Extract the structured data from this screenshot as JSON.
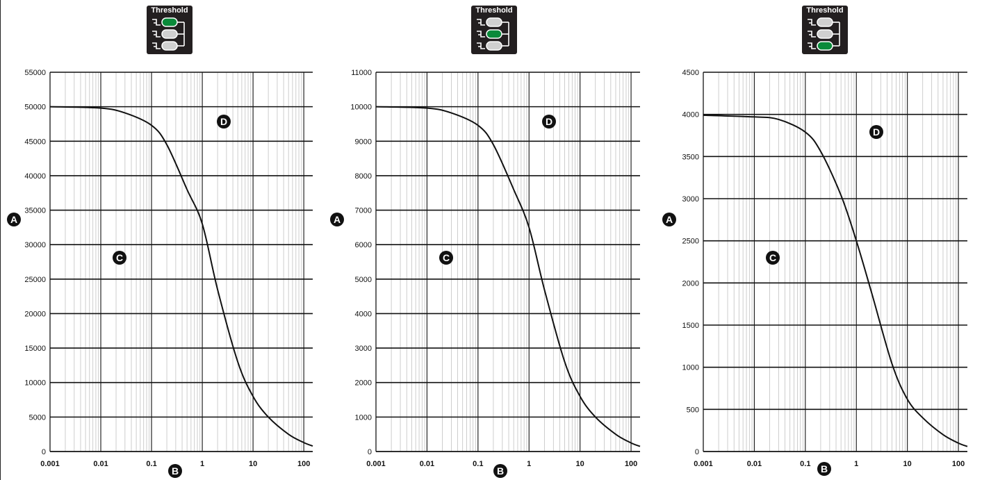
{
  "threshold_badges": [
    {
      "title": "Threshold",
      "active_level": 1
    },
    {
      "title": "Threshold",
      "active_level": 2
    },
    {
      "title": "Threshold",
      "active_level": 3
    }
  ],
  "callouts": {
    "y_axis": "A",
    "x_axis": "B",
    "below_curve": "C",
    "above_curve": "D"
  },
  "colors": {
    "active_level": "#0a8a3a",
    "inactive_level": "#d0d0d0",
    "curve": "#111111"
  },
  "chart_data": [
    {
      "type": "line",
      "x_scale": "log",
      "xlim": [
        0.001,
        150
      ],
      "x_tick_labels": [
        "0.001",
        "0.01",
        "0.1",
        "1",
        "10",
        "100"
      ],
      "ylim": [
        0,
        55000
      ],
      "y_ticks": [
        0,
        5000,
        10000,
        15000,
        20000,
        25000,
        30000,
        35000,
        40000,
        45000,
        50000,
        55000
      ],
      "y_tick_labels": [
        "0",
        "5000",
        "10000",
        "15000",
        "20000",
        "25000",
        "30000",
        "35000",
        "40000",
        "45000",
        "50000",
        "55000"
      ],
      "grid": true,
      "x": [
        0.001,
        0.01,
        0.03,
        0.1,
        0.2,
        0.5,
        1,
        2,
        5,
        10,
        20,
        50,
        100,
        150
      ],
      "y": [
        50000,
        49800,
        49100,
        47300,
        44500,
        38000,
        33000,
        23500,
        13000,
        8000,
        5000,
        2500,
        1300,
        800
      ]
    },
    {
      "type": "line",
      "x_scale": "log",
      "xlim": [
        0.001,
        150
      ],
      "x_tick_labels": [
        "0.001",
        "0.01",
        "0.1",
        "1",
        "10",
        "100"
      ],
      "ylim": [
        0,
        11000
      ],
      "y_ticks": [
        0,
        1000,
        2000,
        3000,
        4000,
        5000,
        6000,
        7000,
        8000,
        9000,
        10000,
        11000
      ],
      "y_tick_labels": [
        "0",
        "1000",
        "2000",
        "3000",
        "4000",
        "5000",
        "6000",
        "7000",
        "8000",
        "9000",
        "10000",
        "11000"
      ],
      "grid": true,
      "x": [
        0.001,
        0.01,
        0.03,
        0.1,
        0.2,
        0.5,
        1,
        2,
        5,
        10,
        20,
        50,
        100,
        150
      ],
      "y": [
        10000,
        9960,
        9820,
        9460,
        8900,
        7600,
        6500,
        4700,
        2600,
        1600,
        1000,
        500,
        250,
        150
      ]
    },
    {
      "type": "line",
      "x_scale": "log",
      "xlim": [
        0.001,
        150
      ],
      "x_tick_labels": [
        "0.001",
        "0.01",
        "0.1",
        "1",
        "10",
        "100"
      ],
      "ylim": [
        0,
        4500
      ],
      "y_ticks": [
        0,
        500,
        1000,
        1500,
        2000,
        2500,
        3000,
        3500,
        4000,
        4500
      ],
      "y_tick_labels": [
        "0",
        "500",
        "1000",
        "1500",
        "2000",
        "2500",
        "3000",
        "3500",
        "4000",
        "4500"
      ],
      "grid": true,
      "x": [
        0.001,
        0.01,
        0.03,
        0.1,
        0.2,
        0.5,
        1,
        2,
        5,
        10,
        20,
        50,
        100,
        150
      ],
      "y": [
        3990,
        3970,
        3940,
        3790,
        3560,
        3040,
        2500,
        1880,
        1040,
        620,
        400,
        200,
        100,
        60
      ]
    }
  ]
}
